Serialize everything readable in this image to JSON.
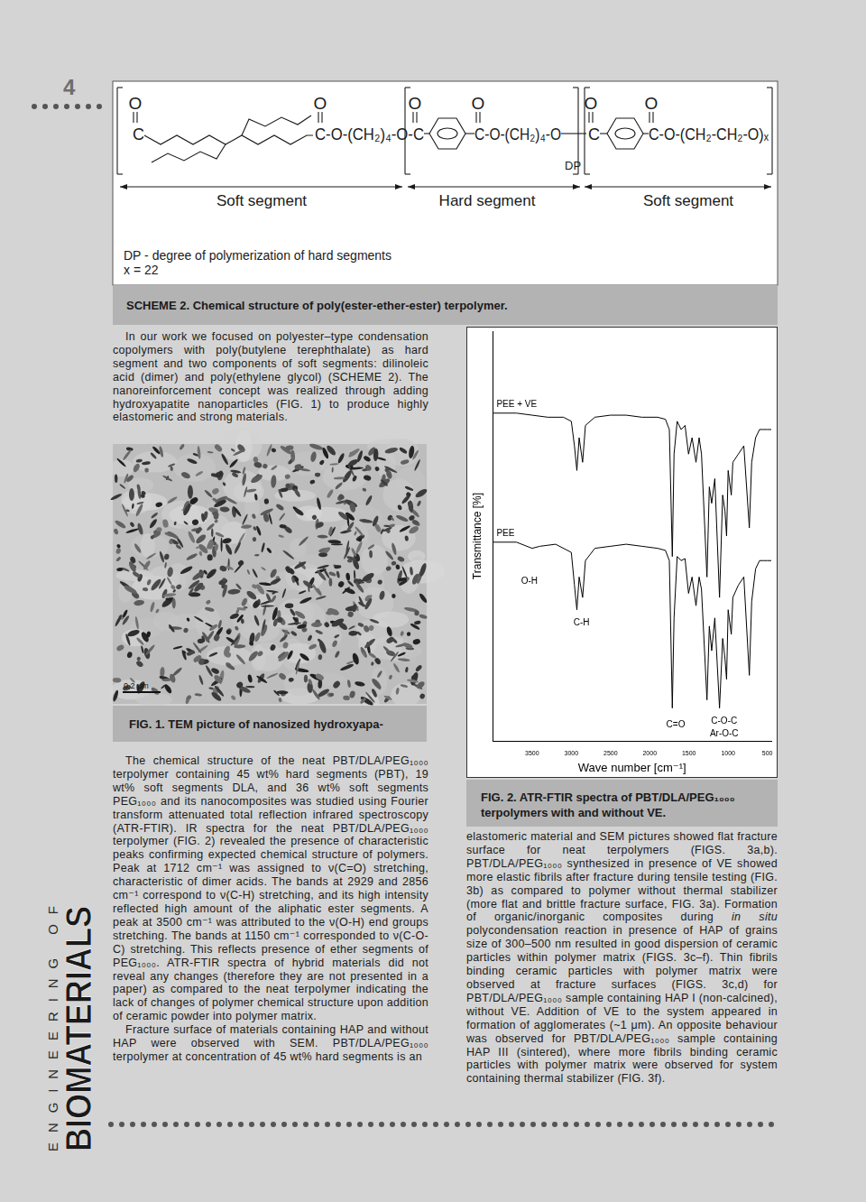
{
  "document": {
    "page_number": "4",
    "scheme": {
      "top_atoms": [
        "O",
        "O",
        "O",
        "O",
        "O",
        "O"
      ],
      "chain": [
        "C",
        "C-O-(CH₂)₄-O-C",
        "C-O-(CH₂)₄-O",
        "C",
        "C-O-(CH₂-CH₂-O)ₓ"
      ],
      "dp_label": "DP",
      "segments": [
        "Soft segment",
        "Hard segment",
        "Soft segment"
      ],
      "notes": [
        "DP - degree of polymerization of hard segments",
        "x = 22"
      ],
      "caption": "SCHEME 2. Chemical structure of poly(ester-ether-ester) terpolymer."
    },
    "intro": [
      [
        {
          "text": "In our work we focused on polyester–type condensation copolymers with poly(butylene terephthalate) as hard segment and two components of soft segments: dilinoleic acid (dimer) and poly(ethylene glycol) (SCHEME 2). The nanoreinforcement concept was realized through adding hydroxyapatite nanoparticles (FIG. 1) to produce highly elastomeric and strong materials."
        }
      ]
    ],
    "figure1": {
      "scale_bar": "0,2 μm",
      "caption": "FIG. 1. TEM picture of nanosized hydroxyapa-"
    },
    "left_text": [
      [
        {
          "text": "The chemical structure of the neat PBT/DLA/PEG₁₀₀₀ terpolymer containing 45 wt% hard segments (PBT), 19 wt% soft segments DLA, and 36 wt% soft segments PEG₁₀₀₀ and its nanocomposites was studied using Fourier transform attenuated total reflection infrared spectroscopy (ATR-FTIR). IR spectra for the neat PBT/DLA/PEG₁₀₀₀ terpolymer (FIG. 2) revealed the presence of characteristic peaks confirming expected chemical structure of polymers. Peak at 1712 cm⁻¹ was assigned to ν(C=O) stretching, characteristic of dimer acids. The bands at 2929 and 2856 cm⁻¹ correspond to ν(C-H) stretching, and its high intensity reflected high amount of the aliphatic ester segments. A peak at 3500 cm⁻¹ was attributed to the ν(O-H) end groups stretching. The bands at 1150 cm⁻¹ corresponded to ν(C-O-C) stretching. This reflects presence of ether segments of PEG₁₀₀₀. ATR-FTIR spectra of hybrid materials did not reveal any changes (therefore they are not presented in a paper) as compared to the neat terpolymer indicating the lack of changes of polymer chemical structure upon addition of ceramic powder into polymer matrix."
        }
      ],
      [
        {
          "text": "Fracture surface of materials containing HAP and without HAP were observed with SEM. PBT/DLA/PEG₁₀₀₀ terpolymer at concentration of 45 wt% hard segments is an"
        }
      ]
    ],
    "figure2_caption": "FIG. 2. ATR-FTIR spectra of PBT/DLA/PEG₁₀₀₀ terpolymers with and without VE.",
    "right_text": [
      [
        {
          "text": "elastomeric material and SEM pictures showed flat fracture surface for neat terpolymers (FIGS. 3a,b). PBT/DLA/PEG₁₀₀₀ synthesized in presence of VE showed more elastic fibrils after fracture during tensile testing (FIG. 3b) as compared to polymer without thermal stabilizer (more flat and brittle fracture surface, FIG. 3a). Formation of organic/inorganic composites during "
        },
        {
          "text": "in situ",
          "italic": true
        },
        {
          "text": " polycondensation reaction in presence of HAP of grains size of 300–500 nm resulted in good dispersion of ceramic particles within polymer matrix (FIGS. 3c–f). Thin fibrils binding ceramic particles with polymer matrix were observed at fracture surfaces (FIGS. 3c,d) for PBT/DLA/PEG₁₀₀₀ sample containing HAP I (non-calcined), without VE. Addition of VE to the system appeared in formation of agglomerates (~1 μm). An opposite behaviour was observed for PBT/DLA/PEG₁₀₀₀ sample containing HAP III (sintered), where more fibrils binding ceramic particles with polymer matrix were observed for system containing thermal stabilizer (FIG. 3f)."
        }
      ]
    ],
    "logo": [
      "ENGINEERING OF",
      "BIOMATERIALS"
    ]
  },
  "chart_data": {
    "type": "line",
    "x_label": "Wave number [cm⁻¹]",
    "y_label": "Transmittance [%]",
    "xlim": [
      4000,
      450
    ],
    "ylim": [
      0,
      100
    ],
    "xticks": [
      3500,
      3000,
      2500,
      2000,
      1500,
      1000,
      500
    ],
    "tick_labels": "x",
    "grid": false,
    "series": [
      {
        "name": "PEE + VE",
        "color": "#000000",
        "x": [
          4000,
          3700,
          3500,
          3300,
          3100,
          3000,
          2960,
          2929,
          2900,
          2856,
          2820,
          2700,
          2500,
          2300,
          2100,
          1900,
          1800,
          1750,
          1712,
          1690,
          1650,
          1600,
          1550,
          1505,
          1460,
          1410,
          1370,
          1340,
          1270,
          1240,
          1210,
          1170,
          1110,
          1070,
          1040,
          1020,
          1000,
          960,
          940,
          870,
          800,
          730,
          700,
          650,
          600,
          550,
          500,
          450
        ],
        "values": [
          80,
          80,
          79.5,
          79,
          79,
          78,
          72,
          66,
          74,
          68,
          77,
          79,
          79.5,
          79.5,
          79,
          79,
          78.5,
          76,
          45,
          70,
          78,
          76,
          77,
          70,
          74,
          68,
          74,
          70,
          40,
          62,
          58,
          64,
          35,
          60,
          56,
          50,
          66,
          60,
          68,
          70,
          72,
          52,
          68,
          74,
          76,
          76,
          76,
          76
        ]
      },
      {
        "name": "PEE",
        "color": "#000000",
        "x": [
          4000,
          3700,
          3500,
          3400,
          3200,
          3000,
          2960,
          2929,
          2900,
          2856,
          2820,
          2700,
          2500,
          2300,
          2100,
          1900,
          1800,
          1750,
          1712,
          1690,
          1650,
          1600,
          1550,
          1505,
          1460,
          1410,
          1370,
          1340,
          1270,
          1240,
          1210,
          1170,
          1110,
          1070,
          1040,
          1020,
          1000,
          960,
          940,
          870,
          800,
          730,
          700,
          650,
          600,
          550,
          500,
          450
        ],
        "values": [
          48.5,
          48.5,
          47,
          47.5,
          48,
          46,
          38,
          32,
          40,
          35,
          44,
          47,
          47.5,
          48,
          47.5,
          47,
          46.5,
          44,
          8,
          30,
          45,
          44,
          44.5,
          36,
          40,
          33,
          40,
          37,
          10,
          28,
          22,
          30,
          8,
          25,
          20,
          15,
          32,
          26,
          35,
          38,
          40,
          16,
          34,
          42,
          44,
          44,
          44,
          44
        ]
      }
    ],
    "annotations": [
      {
        "text": "O-H",
        "x": 3534,
        "y": 39
      },
      {
        "text": "C-H",
        "x": 2871,
        "y": 28.7
      },
      {
        "text": "C=O",
        "x": 1669,
        "y": 4
      },
      {
        "text": "C-O-C",
        "x": 1051,
        "y": 4.8
      },
      {
        "text": "Ar-O-C",
        "x": 1051,
        "y": 1.7
      }
    ]
  }
}
